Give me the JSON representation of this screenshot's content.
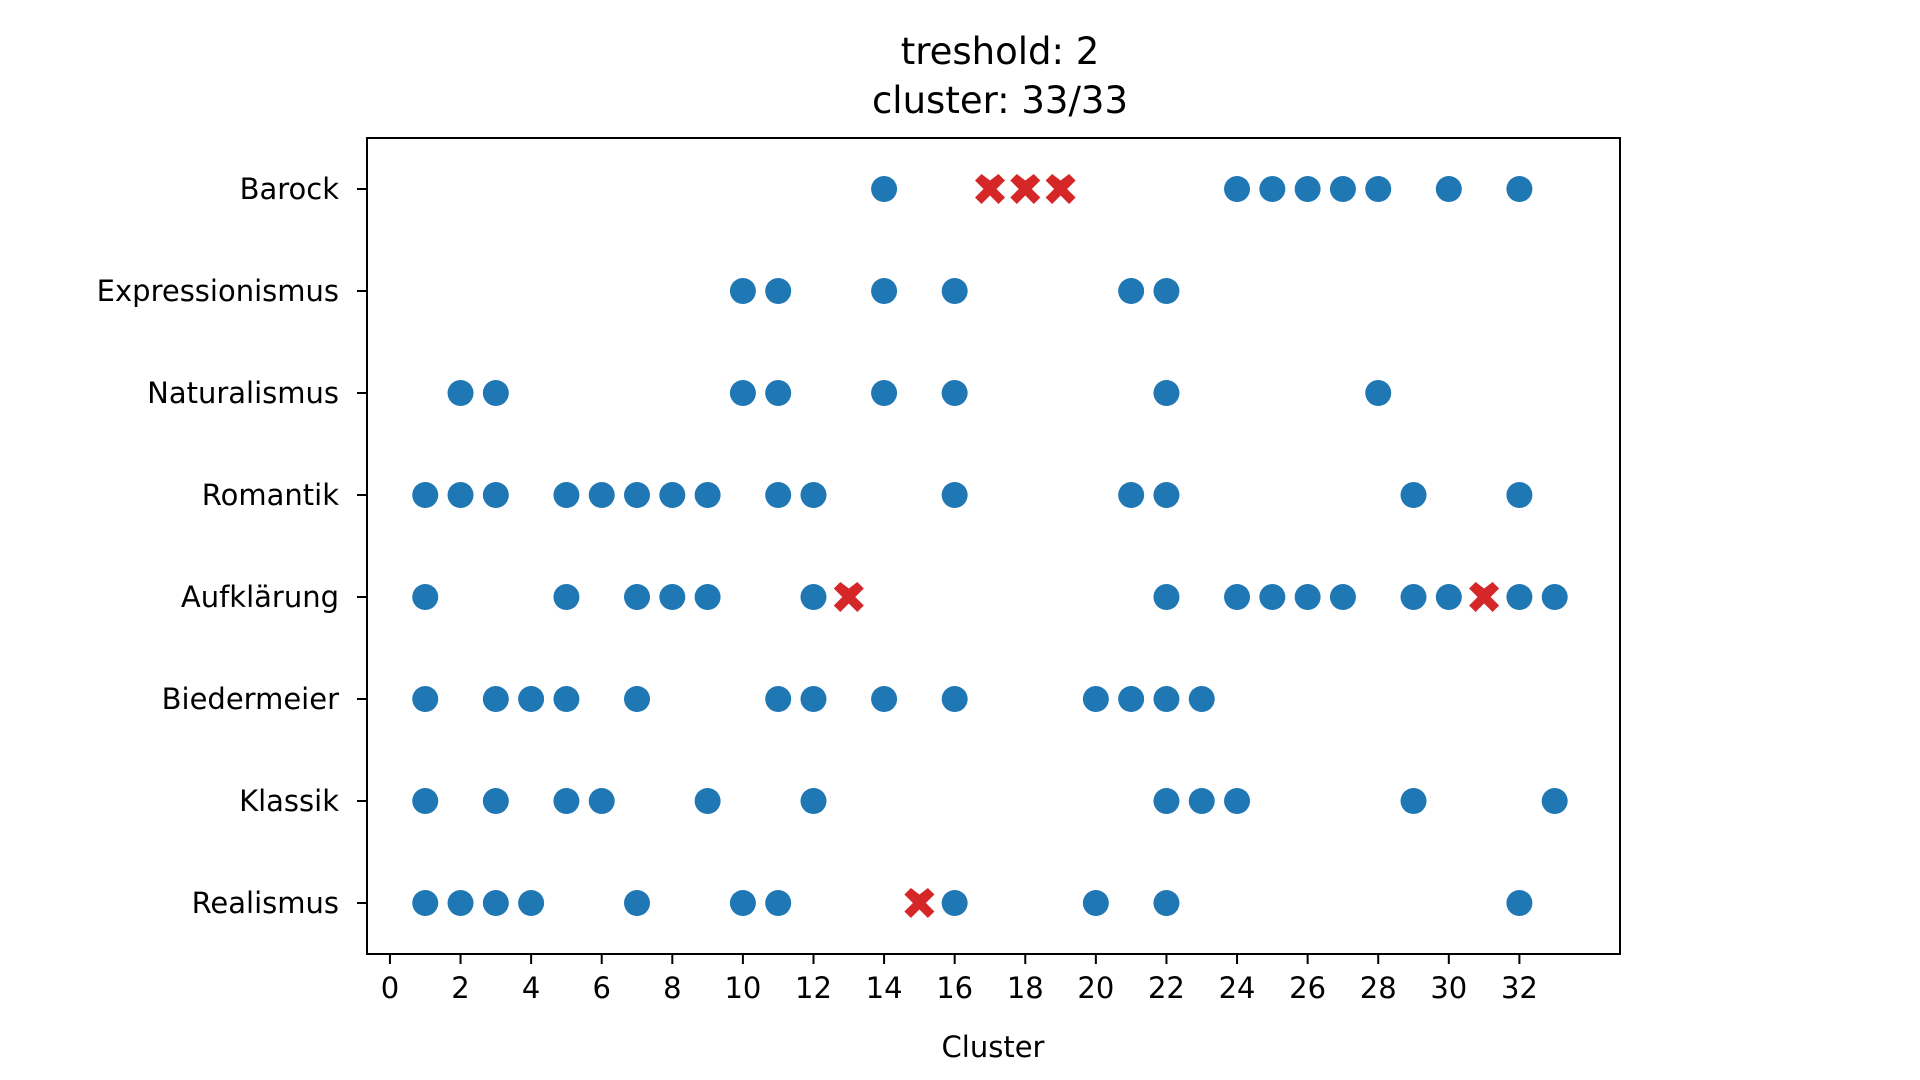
{
  "chart_data": {
    "type": "scatter",
    "title_lines": [
      "treshold: 2",
      "cluster: 33/33"
    ],
    "xlabel": "Cluster",
    "ylabel": "",
    "xlim": [
      -0.65,
      34.85
    ],
    "xticks": [
      0,
      2,
      4,
      6,
      8,
      10,
      12,
      14,
      16,
      18,
      20,
      22,
      24,
      26,
      28,
      30,
      32
    ],
    "categories": [
      "Barock",
      "Expressionismus",
      "Naturalismus",
      "Romantik",
      "Aufklärung",
      "Biedermeier",
      "Klassik",
      "Realismus"
    ],
    "grid": false,
    "colors": {
      "point": "#1f77b4",
      "cross": "#d62728",
      "axis": "#000000"
    },
    "markers": {
      "point": "circle",
      "cross": "x-filled"
    },
    "rows": [
      {
        "category": "Barock",
        "points": [
          14,
          24,
          25,
          26,
          27,
          28,
          30,
          32
        ],
        "crosses": [
          17,
          18,
          19
        ]
      },
      {
        "category": "Expressionismus",
        "points": [
          10,
          11,
          14,
          16,
          21,
          22
        ],
        "crosses": []
      },
      {
        "category": "Naturalismus",
        "points": [
          2,
          3,
          10,
          11,
          14,
          16,
          22,
          28
        ],
        "crosses": []
      },
      {
        "category": "Romantik",
        "points": [
          1,
          2,
          3,
          5,
          6,
          7,
          8,
          9,
          11,
          12,
          16,
          21,
          22,
          29,
          32
        ],
        "crosses": []
      },
      {
        "category": "Aufklärung",
        "points": [
          1,
          5,
          7,
          8,
          9,
          12,
          22,
          24,
          25,
          26,
          27,
          29,
          30,
          32,
          33
        ],
        "crosses": [
          13,
          31
        ]
      },
      {
        "category": "Biedermeier",
        "points": [
          1,
          3,
          4,
          5,
          7,
          11,
          12,
          14,
          16,
          20,
          21,
          22,
          23
        ],
        "crosses": []
      },
      {
        "category": "Klassik",
        "points": [
          1,
          3,
          5,
          6,
          9,
          12,
          22,
          23,
          24,
          29,
          33
        ],
        "crosses": []
      },
      {
        "category": "Realismus",
        "points": [
          1,
          2,
          3,
          4,
          7,
          10,
          11,
          16,
          20,
          22,
          32
        ],
        "crosses": [
          15
        ]
      }
    ]
  }
}
